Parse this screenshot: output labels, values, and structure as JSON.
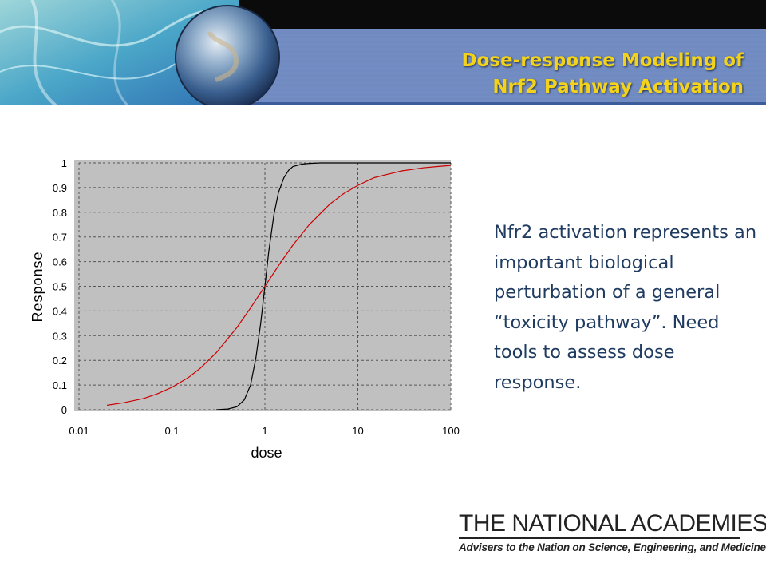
{
  "slide": {
    "title_line1": "Dose-response Modeling of",
    "title_line2": "Nrf2 Pathway Activation",
    "body_text": "Nfr2 activation represents an important biological perturbation of a general “toxicity pathway”.  Need tools to assess dose response.",
    "logo_title": "THE NATIONAL ACADEMIES",
    "logo_subtitle": "Advisers to the Nation on Science, Engineering, and Medicine"
  },
  "chart_data": {
    "type": "line",
    "title": "",
    "xlabel": "dose",
    "ylabel": "Response",
    "xscale": "log",
    "xlim": [
      0.01,
      100
    ],
    "ylim": [
      0,
      1
    ],
    "x_ticks": [
      "0.01",
      "0.1",
      "1",
      "10",
      "100"
    ],
    "y_ticks": [
      "0",
      "0.1",
      "0.2",
      "0.3",
      "0.4",
      "0.5",
      "0.6",
      "0.7",
      "0.8",
      "0.9",
      "1"
    ],
    "grid": true,
    "series": [
      {
        "color": "#000000",
        "x": [
          0.3,
          0.4,
          0.5,
          0.6,
          0.7,
          0.8,
          0.9,
          1.0,
          1.1,
          1.25,
          1.4,
          1.6,
          1.8,
          2.0,
          2.5,
          3.0,
          4.0,
          6.0,
          10,
          20,
          50,
          100
        ],
        "y": [
          0.0,
          0.003,
          0.012,
          0.04,
          0.1,
          0.21,
          0.35,
          0.5,
          0.64,
          0.79,
          0.88,
          0.94,
          0.97,
          0.985,
          0.995,
          0.998,
          1.0,
          1.0,
          1.0,
          1.0,
          1.0,
          1.0
        ]
      },
      {
        "color": "#cc0000",
        "x": [
          0.02,
          0.03,
          0.05,
          0.07,
          0.1,
          0.15,
          0.2,
          0.3,
          0.5,
          0.7,
          1.0,
          1.5,
          2.0,
          3.0,
          5.0,
          7.0,
          10,
          15,
          20,
          30,
          50,
          70,
          100
        ],
        "y": [
          0.018,
          0.028,
          0.046,
          0.065,
          0.091,
          0.13,
          0.167,
          0.231,
          0.333,
          0.412,
          0.5,
          0.6,
          0.667,
          0.75,
          0.833,
          0.875,
          0.909,
          0.94,
          0.952,
          0.968,
          0.98,
          0.985,
          0.99
        ]
      }
    ]
  }
}
